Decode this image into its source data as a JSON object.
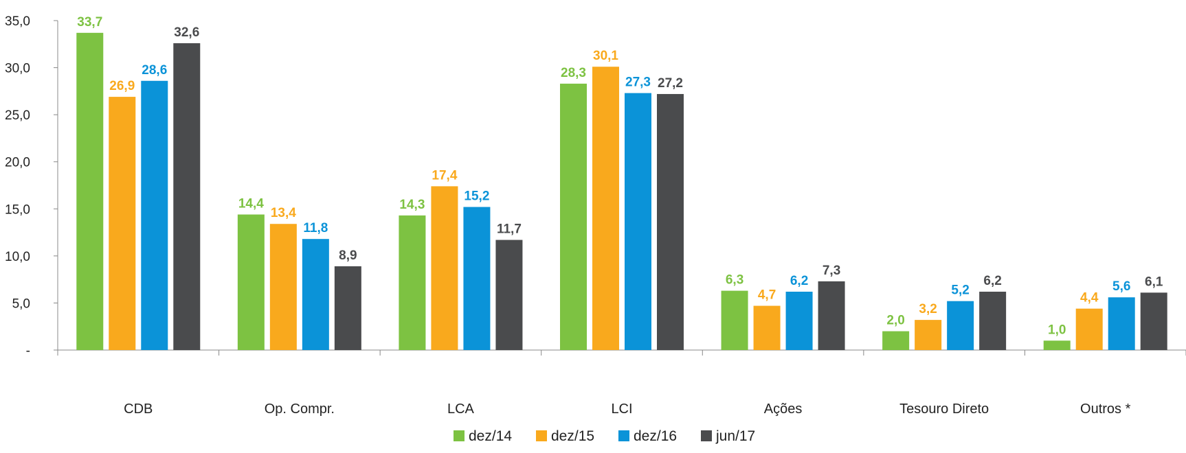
{
  "chart_data": {
    "type": "bar",
    "categories": [
      "CDB",
      "Op. Compr.",
      "LCA",
      "LCI",
      "Ações",
      "Tesouro Direto",
      "Outros *"
    ],
    "series": [
      {
        "name": "dez/14",
        "color": "#7dc242",
        "values": [
          33.7,
          14.4,
          14.3,
          28.3,
          6.3,
          2.0,
          1.0
        ]
      },
      {
        "name": "dez/15",
        "color": "#f9a91d",
        "values": [
          26.9,
          13.4,
          17.4,
          30.1,
          4.7,
          3.2,
          4.4
        ]
      },
      {
        "name": "dez/16",
        "color": "#0b93d8",
        "values": [
          28.6,
          11.8,
          15.2,
          27.3,
          6.2,
          5.2,
          5.6
        ]
      },
      {
        "name": "jun/17",
        "color": "#4a4b4d",
        "values": [
          32.6,
          8.9,
          11.7,
          27.2,
          7.3,
          6.2,
          6.1
        ]
      }
    ],
    "ylim": [
      0,
      35
    ],
    "yticks": [
      0,
      5,
      10,
      15,
      20,
      25,
      30,
      35
    ],
    "ytick_labels": [
      "-",
      "5,0",
      "10,0",
      "15,0",
      "20,0",
      "25,0",
      "30,0",
      "35,0"
    ],
    "data_labels": [
      [
        "33,7",
        "14,4",
        "14,3",
        "28,3",
        "6,3",
        "2,0",
        "1,0"
      ],
      [
        "26,9",
        "13,4",
        "17,4",
        "30,1",
        "4,7",
        "3,2",
        "4,4"
      ],
      [
        "28,6",
        "11,8",
        "15,2",
        "27,3",
        "6,2",
        "5,2",
        "5,6"
      ],
      [
        "32,6",
        "8,9",
        "11,7",
        "27,2",
        "7,3",
        "6,2",
        "6,1"
      ]
    ],
    "legend_position": "bottom",
    "grid": false
  }
}
